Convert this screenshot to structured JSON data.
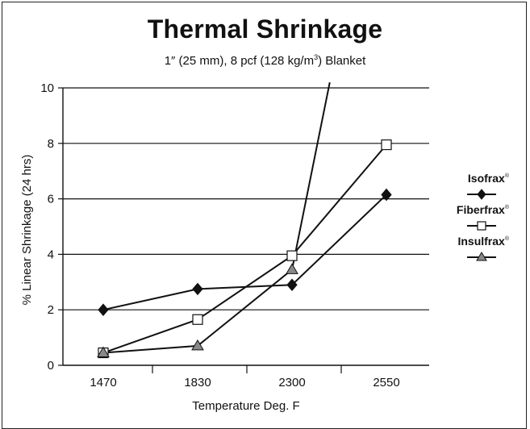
{
  "chart_data": {
    "type": "line",
    "title": "Thermal Shrinkage",
    "subtitle_text": "1″ (25 mm), 8 pcf (128 kg/m",
    "subtitle_sup": "3",
    "subtitle_tail": ") Blanket",
    "xlabel": "Temperature Deg. F",
    "ylabel": "% Linear Shrinkage (24 hrs)",
    "categories": [
      "1470",
      "1830",
      "2300",
      "2550"
    ],
    "ylim": [
      0,
      10
    ],
    "yticks": [
      "0",
      "2",
      "4",
      "6",
      "8",
      "10"
    ],
    "grid": "horizontal",
    "legend_position": "right",
    "series": [
      {
        "name": "Isofrax",
        "legend_suffix": "®",
        "marker": "diamond",
        "marker_fill": "#111111",
        "values": [
          2.0,
          2.75,
          2.9,
          6.15
        ]
      },
      {
        "name": "Fiberfrax",
        "legend_suffix": "®",
        "marker": "square",
        "marker_fill": "#ffffff",
        "values": [
          0.45,
          1.65,
          3.95,
          7.95
        ]
      },
      {
        "name": "Insulfrax",
        "legend_suffix": "®",
        "marker": "triangle",
        "marker_fill": "#888888",
        "values": [
          0.45,
          0.7,
          3.45,
          null
        ],
        "extension": {
          "x": 2.4,
          "y": 10.2
        }
      }
    ]
  }
}
